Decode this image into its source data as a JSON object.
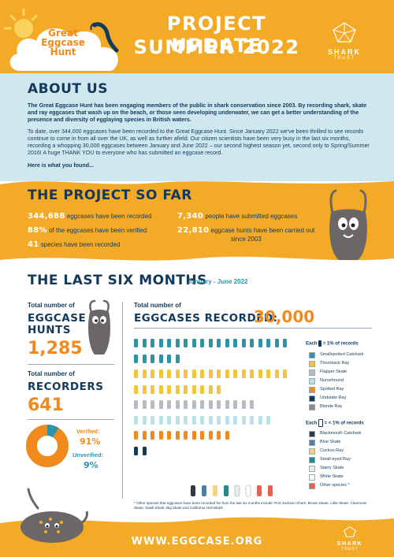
{
  "header": {
    "title_line1": "PROJECT UPDATE",
    "title_line2": "SUMMER 2022",
    "logo": {
      "line1": "Great",
      "line2": "Eggcase",
      "line3": "Hunt"
    },
    "shark_trust": {
      "name": "SHARK",
      "sub": "TRUST"
    }
  },
  "about": {
    "heading": "ABOUT US",
    "intro": "The Great Eggcase Hunt has been engaging members of the public in shark conservation since 2003. By recording shark, skate and ray eggcases that wash up on the beach, or those seen developing underwater, we can get a better understanding of the presence and diversity of egglaying species in British waters.",
    "body": "To date, over 344,000 eggcases have been recorded to the Great Eggcase Hunt. Since January 2022 we've been thrilled to see records continue to come in from all over the UK, as well as further afield. Our citizen scientists have been very busy in the last six months, recording a whopping 30,000 eggcases between January and June 2022 – our second highest season yet, second only to Spring/Summer 2016! A huge THANK YOU to everyone who has submitted an eggcase record.",
    "cta": "Here is what you found..."
  },
  "project": {
    "heading": "THE PROJECT SO FAR",
    "stats": [
      {
        "value": "344,688",
        "text": "eggcases have been recorded"
      },
      {
        "value": "88%",
        "text": "of the eggcases have been verified"
      },
      {
        "value": "41",
        "text": "species have been recorded"
      },
      {
        "value": "7,340",
        "text": "people have submitted eggcases"
      },
      {
        "value": "22,810",
        "text": "eggcase hunts have been carried out"
      }
    ],
    "stat5_line2": "since 2003"
  },
  "six_months": {
    "heading": "THE LAST SIX MONTHS",
    "date_range": "January - June 2022",
    "hunts_label": "Total number of",
    "hunts_big1": "EGGCASE",
    "hunts_big2": "HUNTS",
    "hunts_value": "1,285",
    "recorders_label": "Total number of",
    "recorders_big": "RECORDERS",
    "recorders_value": "641",
    "verified_label": "Verified:",
    "verified_value": "91%",
    "unverified_label": "Unverified:",
    "unverified_value": "9%",
    "eggcases_label": "Total number of",
    "eggcases_big": "EGGCASES RECORDED:",
    "eggcases_value": "30,000",
    "legend_title1": "Each",
    "legend_title1_suffix": "= 1% of records",
    "legend_title2": "Each",
    "legend_title2_suffix": "= < 1% of records",
    "legend1": [
      {
        "name": "Smallspotted Catshark",
        "color": "#2e93a6"
      },
      {
        "name": "Thornback Ray",
        "color": "#f3c53d"
      },
      {
        "name": "Flapper Skate",
        "color": "#b7bcc2"
      },
      {
        "name": "Nursehound",
        "color": "#b9e2e7"
      },
      {
        "name": "Spotted Ray",
        "color": "#f08a1c"
      },
      {
        "name": "Undulate Ray",
        "color": "#133a5c"
      },
      {
        "name": "Blonde Ray",
        "color": "#8d8a88"
      }
    ],
    "legend2": [
      {
        "name": "Blackmouth Catshark",
        "color": "#2f3a44"
      },
      {
        "name": "Blue Skate",
        "color": "#4d7fa6"
      },
      {
        "name": "Cuckoo Ray",
        "color": "#f6d27a"
      },
      {
        "name": "Small-eyed Ray",
        "color": "#1e8a8a"
      },
      {
        "name": "Starry Skate",
        "color": "#e8ecef"
      },
      {
        "name": "White Skate",
        "color": "#ffffff"
      },
      {
        "name": "Other species *",
        "color": "#e8604d"
      }
    ],
    "footnote": "* Other species that eggcases have been recorded for from the last six months include: Port Jackson Shark, Brown Skate, Little Skate, Clearnose Skate, Swell Shark, Big Skate and California Hornshark"
  },
  "pie": {
    "verified": 91,
    "unverified": 9,
    "verified_color": "#f08a1c",
    "unverified_color": "#2e93a6"
  },
  "pictogram_rows": [
    {
      "color": "#2e93a6",
      "count": 19
    },
    {
      "color": "#2e93a6",
      "count": 6
    },
    {
      "color": "#f3c53d",
      "count": 19
    },
    {
      "color": "#f3c53d",
      "count": 11
    },
    {
      "color": "#b7bcc2",
      "count": 15
    },
    {
      "color": "#b9e2e7",
      "count": 17
    },
    {
      "color": "#f08a1c",
      "count": 12
    },
    {
      "color": "#133a5c",
      "count": 2
    }
  ],
  "footer": {
    "url": "WWW.EGGCASE.ORG",
    "brand": "SHARK",
    "brand_sub": "TRUST"
  }
}
